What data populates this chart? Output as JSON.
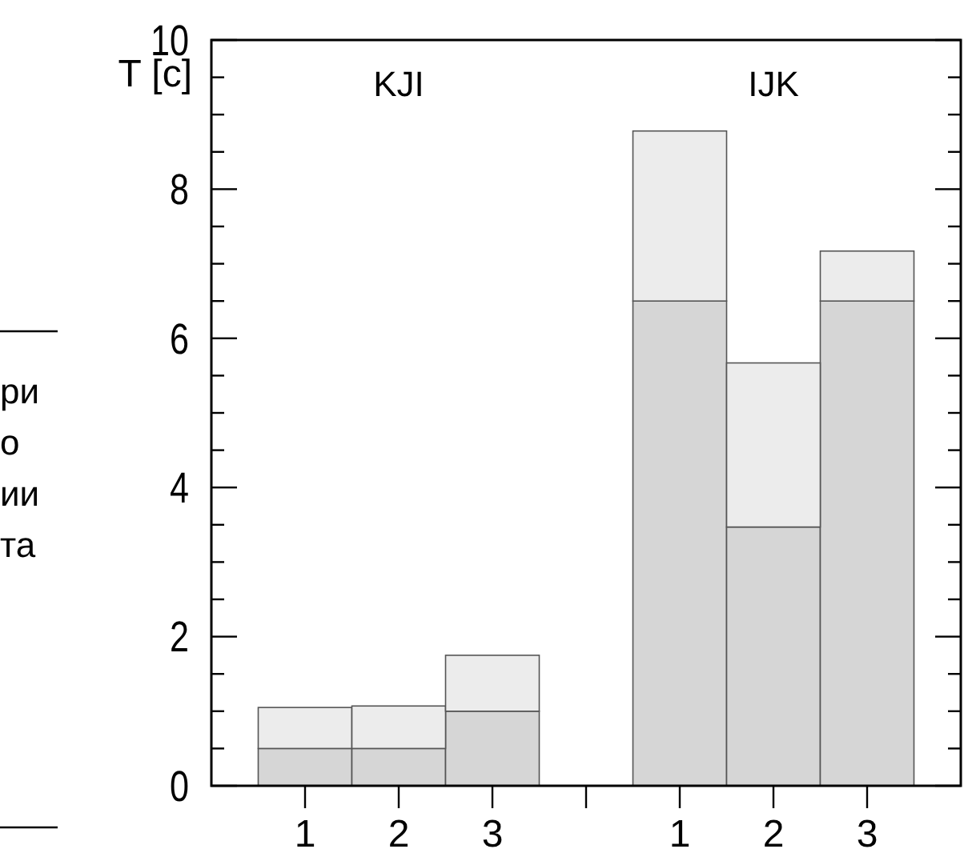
{
  "chart_data": {
    "type": "bar",
    "stacked": true,
    "ylabel": "T [c]",
    "categories": [
      "1",
      "2",
      "3",
      null,
      "1",
      "2",
      "3"
    ],
    "series": [
      {
        "color": "#d6d6d6",
        "values": [
          0.5,
          0.5,
          1.0,
          null,
          6.5,
          3.47,
          6.5
        ]
      },
      {
        "color": "#ececec",
        "values": [
          0.55,
          0.57,
          0.75,
          null,
          2.28,
          2.2,
          0.67
        ]
      }
    ],
    "ylim": [
      0,
      10
    ],
    "yticks": [
      0,
      2,
      4,
      6,
      8,
      10
    ],
    "annotations": [
      "KJI",
      "IJK",
      "ри",
      "о",
      "ии",
      "та"
    ]
  }
}
